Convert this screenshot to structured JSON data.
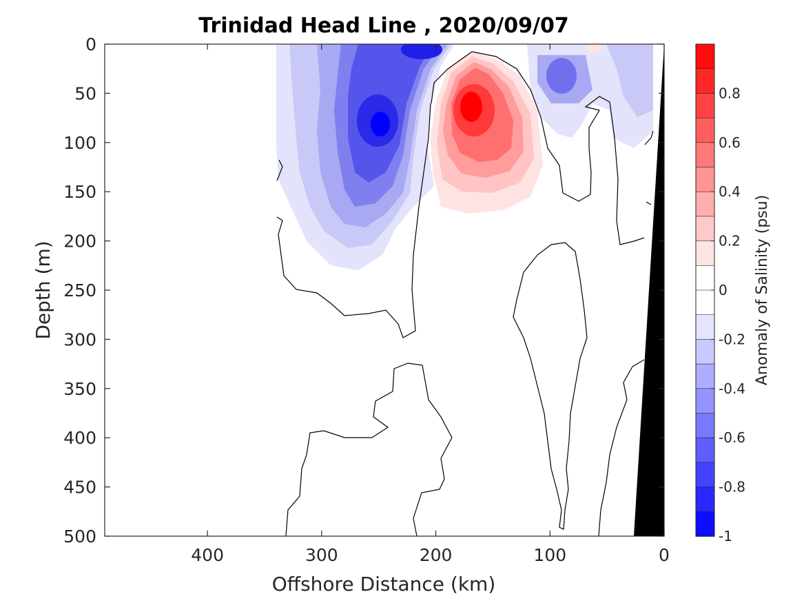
{
  "chart_data": {
    "type": "contour",
    "title": "Trinidad Head Line , 2020/09/07",
    "xlabel": "Offshore Distance (km)",
    "ylabel": "Depth (m)",
    "xlim": [
      490,
      0
    ],
    "ylim": [
      0,
      500
    ],
    "x_direction": "reversed",
    "y_direction": "reversed",
    "xticks": [
      400,
      300,
      200,
      100,
      0
    ],
    "yticks": [
      0,
      50,
      100,
      150,
      200,
      250,
      300,
      350,
      400,
      450,
      500
    ],
    "colorbar": {
      "label": "Anomaly of Salinity (psu)",
      "range": [
        -1,
        1
      ],
      "ticks": [
        0.8,
        0.6,
        0.4,
        0.2,
        0,
        -0.2,
        -0.4,
        -0.6,
        -0.8,
        -1
      ],
      "tick_labels": [
        "0.8",
        "0.6",
        "0.4",
        "0.2",
        "0",
        "-0.2",
        "-0.4",
        "-0.6",
        "-0.8",
        "-1"
      ],
      "levels": 20,
      "positive_color": "#ff0000",
      "negative_color": "#0000ff",
      "neutral_color": "#ffffff"
    },
    "features": [
      {
        "name": "positive-anomaly-core",
        "center_x_km": 170,
        "center_depth_m": 65,
        "peak": 1.0
      },
      {
        "name": "negative-anomaly-core",
        "center_x_km": 250,
        "center_depth_m": 85,
        "peak": -1.0
      },
      {
        "name": "negative-anomaly-surface",
        "center_x_km": 210,
        "center_depth_m": 5,
        "peak": -0.8
      },
      {
        "name": "negative-anomaly-nearshore",
        "center_x_km": 90,
        "center_depth_m": 40,
        "peak": -0.6
      }
    ],
    "data_extent_x_km": [
      0,
      340
    ],
    "seafloor_mask_color": "#000000"
  }
}
